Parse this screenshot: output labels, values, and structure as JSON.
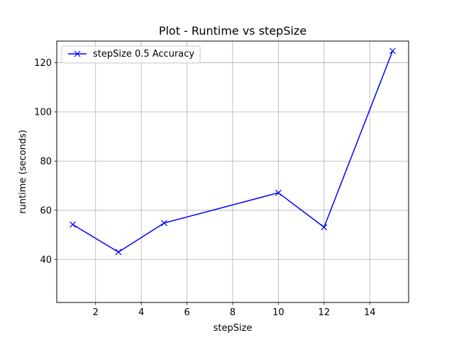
{
  "chart_data": {
    "type": "line",
    "title": "Plot - Runtime vs stepSize",
    "xlabel": "stepSize",
    "ylabel": "runtime (seconds)",
    "xlim": [
      0.3,
      15.7
    ],
    "ylim": [
      22.5,
      128.8
    ],
    "xticks": [
      2,
      4,
      6,
      8,
      10,
      12,
      14
    ],
    "yticks": [
      40,
      60,
      80,
      100,
      120
    ],
    "grid": true,
    "legend_position": "top-left",
    "series": [
      {
        "name": "stepSize 0.5 Accuracy",
        "color": "#0000ff",
        "marker": "x",
        "x": [
          1,
          3,
          5,
          10,
          12,
          15
        ],
        "y": [
          54.2,
          43.0,
          54.8,
          67.1,
          53.1,
          124.8
        ]
      }
    ]
  }
}
